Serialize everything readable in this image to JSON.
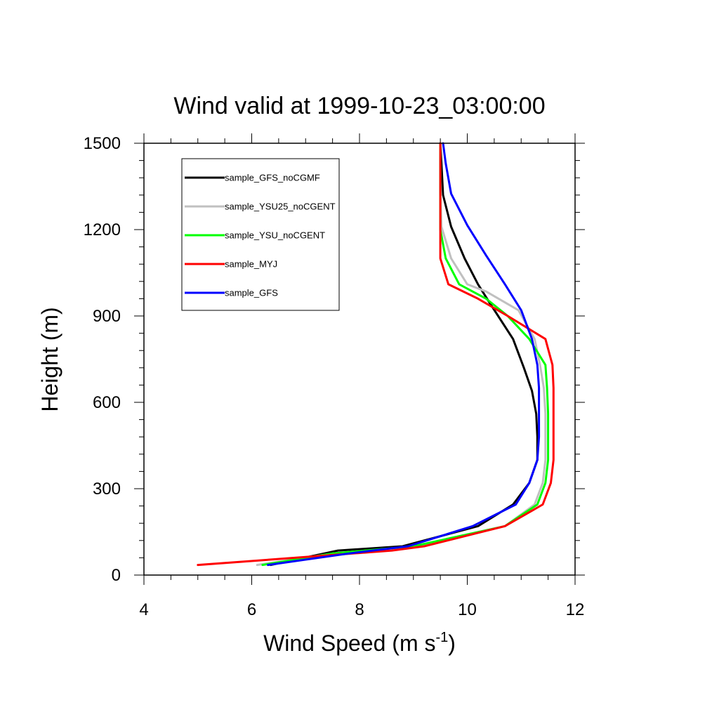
{
  "chart_data": {
    "type": "line",
    "title": "Wind valid at 1999-10-23_03:00:00",
    "xlabel": "Wind Speed (m s",
    "xlabel_sup": "-1",
    "xlabel_suffix": ")",
    "ylabel": "Height (m)",
    "xlim": [
      4,
      12
    ],
    "ylim": [
      0,
      1500
    ],
    "xticks": [
      4,
      6,
      8,
      10,
      12
    ],
    "yticks": [
      0,
      300,
      600,
      900,
      1200,
      1500
    ],
    "legend_position": "top-left",
    "series": [
      {
        "name": "sample_GFS_noCGMF",
        "color": "#000000",
        "points": [
          [
            6.35,
            35
          ],
          [
            7.6,
            85
          ],
          [
            8.8,
            100
          ],
          [
            10.2,
            170
          ],
          [
            10.85,
            245
          ],
          [
            11.15,
            320
          ],
          [
            11.3,
            400
          ],
          [
            11.3,
            480
          ],
          [
            11.28,
            560
          ],
          [
            11.2,
            640
          ],
          [
            11.05,
            720
          ],
          [
            10.85,
            820
          ],
          [
            10.4,
            950
          ],
          [
            10.2,
            1010
          ],
          [
            9.95,
            1100
          ],
          [
            9.7,
            1210
          ],
          [
            9.55,
            1320
          ],
          [
            9.52,
            1430
          ],
          [
            9.5,
            1500
          ]
        ]
      },
      {
        "name": "sample_YSU25_noCGENT",
        "color": "#c0c0c0",
        "points": [
          [
            6.1,
            35
          ],
          [
            7.5,
            75
          ],
          [
            9.1,
            100
          ],
          [
            10.7,
            170
          ],
          [
            11.25,
            245
          ],
          [
            11.4,
            320
          ],
          [
            11.45,
            400
          ],
          [
            11.45,
            480
          ],
          [
            11.45,
            560
          ],
          [
            11.42,
            650
          ],
          [
            11.35,
            730
          ],
          [
            11.25,
            820
          ],
          [
            10.95,
            920
          ],
          [
            10.35,
            985
          ],
          [
            10.0,
            1010
          ],
          [
            9.7,
            1100
          ],
          [
            9.52,
            1210
          ],
          [
            9.5,
            1350
          ],
          [
            9.5,
            1500
          ]
        ]
      },
      {
        "name": "sample_YSU_noCGENT",
        "color": "#00ff00",
        "points": [
          [
            6.2,
            35
          ],
          [
            7.5,
            75
          ],
          [
            9.0,
            100
          ],
          [
            10.7,
            170
          ],
          [
            11.3,
            245
          ],
          [
            11.45,
            320
          ],
          [
            11.5,
            400
          ],
          [
            11.5,
            480
          ],
          [
            11.5,
            560
          ],
          [
            11.48,
            650
          ],
          [
            11.45,
            730
          ],
          [
            11.15,
            820
          ],
          [
            10.75,
            900
          ],
          [
            10.35,
            960
          ],
          [
            9.85,
            1010
          ],
          [
            9.6,
            1100
          ],
          [
            9.5,
            1200
          ],
          [
            9.5,
            1350
          ],
          [
            9.5,
            1500
          ]
        ]
      },
      {
        "name": "sample_MYJ",
        "color": "#ff0000",
        "points": [
          [
            5.0,
            35
          ],
          [
            6.8,
            60
          ],
          [
            8.6,
            85
          ],
          [
            9.2,
            100
          ],
          [
            10.7,
            170
          ],
          [
            11.4,
            245
          ],
          [
            11.55,
            320
          ],
          [
            11.6,
            400
          ],
          [
            11.6,
            480
          ],
          [
            11.6,
            560
          ],
          [
            11.6,
            650
          ],
          [
            11.58,
            730
          ],
          [
            11.45,
            820
          ],
          [
            10.75,
            900
          ],
          [
            10.2,
            960
          ],
          [
            9.65,
            1010
          ],
          [
            9.5,
            1100
          ],
          [
            9.5,
            1200
          ],
          [
            9.5,
            1350
          ],
          [
            9.5,
            1500
          ]
        ]
      },
      {
        "name": "sample_GFS",
        "color": "#0000ff",
        "points": [
          [
            6.3,
            35
          ],
          [
            7.8,
            75
          ],
          [
            8.9,
            100
          ],
          [
            10.1,
            170
          ],
          [
            10.9,
            245
          ],
          [
            11.15,
            320
          ],
          [
            11.3,
            400
          ],
          [
            11.33,
            480
          ],
          [
            11.33,
            560
          ],
          [
            11.33,
            650
          ],
          [
            11.3,
            730
          ],
          [
            11.2,
            820
          ],
          [
            11.0,
            920
          ],
          [
            10.7,
            1010
          ],
          [
            10.35,
            1110
          ],
          [
            10.0,
            1215
          ],
          [
            9.7,
            1325
          ],
          [
            9.6,
            1430
          ],
          [
            9.55,
            1500
          ]
        ]
      }
    ]
  }
}
